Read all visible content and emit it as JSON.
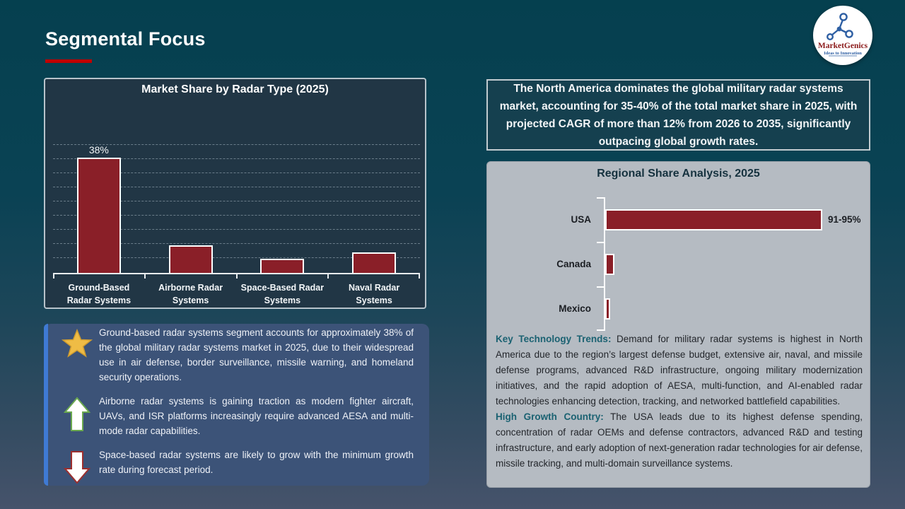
{
  "slide_title": "Segmental Focus",
  "accent_colors": {
    "title_underline": "#c00000",
    "bar_fill": "#8a1f28",
    "insight_box": "#3c5378",
    "insight_stripe": "#3f7ad4",
    "teal_heading": "#1b6272",
    "background_top": "#05404f",
    "background_bottom": "#46536b",
    "gray_panel": "#b5bbc2"
  },
  "logo": {
    "name": "MarketGenics",
    "tagline": "Ideas to Innovation"
  },
  "chart_data": [
    {
      "type": "bar",
      "title": "Market Share by Radar Type (2025)",
      "categories": [
        "Ground-Based Radar Systems",
        "Airborne Radar Systems",
        "Space-Based Radar Systems",
        "Naval Radar Systems"
      ],
      "category_lines": [
        [
          "Ground-Based",
          "Radar Systems"
        ],
        [
          "Airborne Radar",
          "Systems"
        ],
        [
          "Space-Based Radar",
          "Systems"
        ],
        [
          "Naval Radar",
          "Systems"
        ]
      ],
      "values": [
        38,
        8.8,
        4.6,
        6.6
      ],
      "data_labels": [
        "38%",
        "",
        "",
        ""
      ],
      "ylim": [
        0,
        41
      ],
      "grid": "horizontal dashed, no y-axis tick labels",
      "bar_color": "#8a1f28",
      "note": "Only the first bar carries a printed data label (38%); other values estimated from bar heights."
    },
    {
      "type": "bar",
      "orientation": "horizontal",
      "title": "Regional Share Analysis, 2025",
      "categories": [
        "USA",
        "Canada",
        "Mexico"
      ],
      "values": [
        93,
        3.9,
        2.1
      ],
      "data_labels": [
        "91-95%",
        "",
        ""
      ],
      "xlim": [
        0,
        100
      ],
      "grid": "off",
      "bar_color": "#8a1f28",
      "note": "Only USA carries a printed range label (91-95%); Canada and Mexico widths estimated."
    }
  ],
  "highlight_box": {
    "text": "The North America dominates the global military radar systems market, accounting for 35-40% of the total market share in 2025, with projected CAGR of more than 12% from 2026 to 2035, significantly outpacing global growth rates."
  },
  "insights": {
    "items": [
      {
        "icon": "star",
        "text": "Ground-based radar systems segment accounts for approximately 38% of the global military radar systems market in 2025, due to their widespread use in air defense, border surveillance, missile warning, and homeland security operations."
      },
      {
        "icon": "up-arrow",
        "text": "Airborne radar systems is gaining traction as modern fighter aircraft, UAVs, and ISR platforms increasingly require advanced AESA and multi-mode radar capabilities."
      },
      {
        "icon": "down-arrow",
        "text": "Space-based radar systems are likely to grow with the minimum growth rate during forecast period."
      }
    ]
  },
  "regional_analysis": {
    "paragraphs": [
      {
        "heading": "Key Technology Trends:",
        "body": " Demand for military radar systems is highest in North America due to the region’s largest defense budget, extensive air, naval, and missile defense programs, advanced R&D infrastructure, ongoing military modernization initiatives, and the rapid adoption of AESA, multi-function, and AI-enabled radar technologies enhancing detection, tracking, and networked battlefield capabilities."
      },
      {
        "heading": "High Growth Country:",
        "body": " The USA leads due to its highest defense spending, concentration of radar OEMs and defense contractors, advanced R&D and testing infrastructure, and early adoption of next-generation radar technologies for air defense, missile tracking, and multi-domain surveillance systems."
      }
    ]
  }
}
